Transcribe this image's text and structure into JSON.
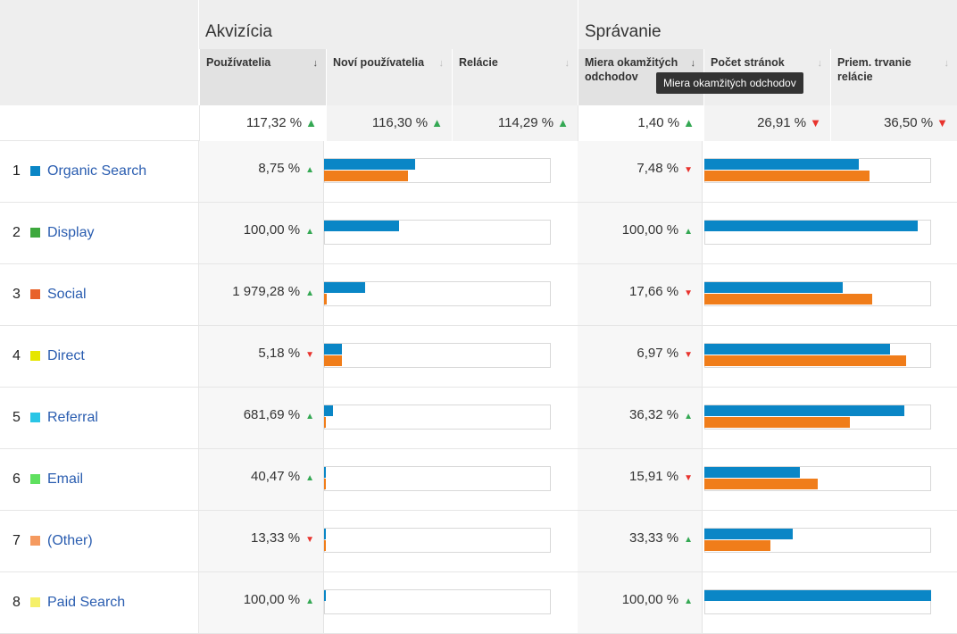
{
  "groups": {
    "acquisition": "Akvizícia",
    "behavior": "Správanie"
  },
  "columns": [
    {
      "label": "Používatelia",
      "sorted": true
    },
    {
      "label": "Noví používatelia",
      "sorted": false
    },
    {
      "label": "Relácie",
      "sorted": false
    },
    {
      "label": "Miera okamžitých odchodov",
      "sorted": true
    },
    {
      "label": "Počet stránok",
      "sorted": false
    },
    {
      "label": "Priem. trvanie relácie",
      "sorted": false
    }
  ],
  "tooltip": "Miera okamžitých odchodov",
  "totals": [
    {
      "value": "117,32 %",
      "trend": "up"
    },
    {
      "value": "116,30 %",
      "trend": "up"
    },
    {
      "value": "114,29 %",
      "trend": "up"
    },
    {
      "value": "1,40 %",
      "trend": "up"
    },
    {
      "value": "26,91 %",
      "trend": "down"
    },
    {
      "value": "36,50 %",
      "trend": "down"
    }
  ],
  "rows": [
    {
      "num": "1",
      "label": "Organic Search",
      "color": "#0a86c6",
      "users_change": "8,75 %",
      "users_trend": "up",
      "bounce_change": "7,48 %",
      "bounce_trend": "down",
      "users_bars": [
        0.4,
        0.37
      ],
      "bounce_bars": [
        0.68,
        0.73
      ]
    },
    {
      "num": "2",
      "label": "Display",
      "color": "#3da83d",
      "users_change": "100,00 %",
      "users_trend": "up",
      "bounce_change": "100,00 %",
      "bounce_trend": "up",
      "users_bars": [
        0.33,
        0
      ],
      "bounce_bars": [
        0.94,
        0
      ]
    },
    {
      "num": "3",
      "label": "Social",
      "color": "#e8622a",
      "users_change": "1 979,28 %",
      "users_trend": "up",
      "bounce_change": "17,66 %",
      "bounce_trend": "down",
      "users_bars": [
        0.18,
        0.01
      ],
      "bounce_bars": [
        0.61,
        0.74
      ]
    },
    {
      "num": "4",
      "label": "Direct",
      "color": "#e6e600",
      "users_change": "5,18 %",
      "users_trend": "down",
      "bounce_change": "6,97 %",
      "bounce_trend": "down",
      "users_bars": [
        0.08,
        0.08
      ],
      "bounce_bars": [
        0.82,
        0.89
      ]
    },
    {
      "num": "5",
      "label": "Referral",
      "color": "#29c5e6",
      "users_change": "681,69 %",
      "users_trend": "up",
      "bounce_change": "36,32 %",
      "bounce_trend": "up",
      "users_bars": [
        0.04,
        0.005
      ],
      "bounce_bars": [
        0.88,
        0.64
      ]
    },
    {
      "num": "6",
      "label": "Email",
      "color": "#5fe05f",
      "users_change": "40,47 %",
      "users_trend": "up",
      "bounce_change": "15,91 %",
      "bounce_trend": "down",
      "users_bars": [
        0.005,
        0.005
      ],
      "bounce_bars": [
        0.42,
        0.5
      ]
    },
    {
      "num": "7",
      "label": "(Other)",
      "color": "#f59a5f",
      "users_change": "13,33 %",
      "users_trend": "down",
      "bounce_change": "33,33 %",
      "bounce_trend": "up",
      "users_bars": [
        0.005,
        0.005
      ],
      "bounce_bars": [
        0.39,
        0.29
      ]
    },
    {
      "num": "8",
      "label": "Paid Search",
      "color": "#f5f06a",
      "users_change": "100,00 %",
      "users_trend": "up",
      "bounce_change": "100,00 %",
      "bounce_trend": "up",
      "users_bars": [
        0.005,
        0
      ],
      "bounce_bars": [
        1.0,
        0
      ]
    }
  ]
}
